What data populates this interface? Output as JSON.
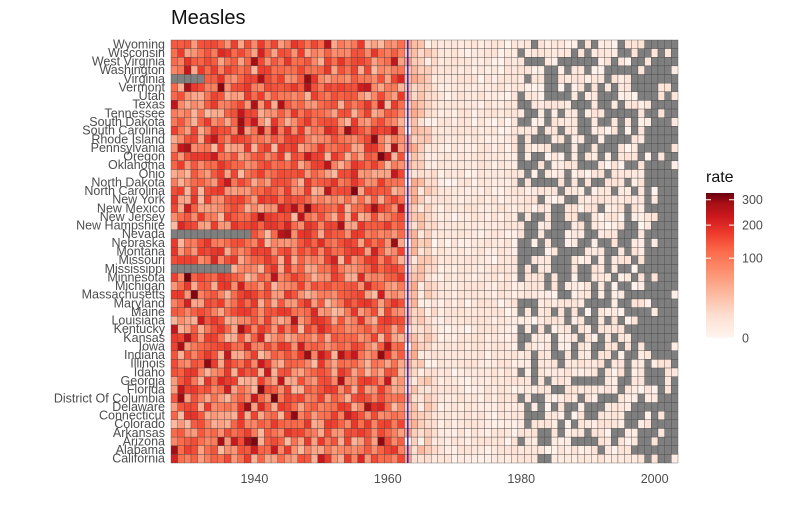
{
  "chart_data": {
    "type": "heatmap",
    "title": "Measles",
    "xlabel": "",
    "ylabel": "",
    "x_range": [
      1928,
      2003
    ],
    "x_ticks": [
      1940,
      1960,
      1980,
      2000
    ],
    "vaccine_line_year": 1963,
    "missing_color": "#7f7f7f",
    "grid_line_color": "#444444",
    "vaccine_line_color": "#0000cd",
    "legend": {
      "title": "rate",
      "position": "right",
      "ticks": [
        0,
        100,
        200,
        300
      ],
      "scale": "sqrt",
      "colors": [
        "#fff5f0",
        "#fee0d2",
        "#fcbba1",
        "#fc9272",
        "#fb6a4a",
        "#ef3b2c",
        "#cb181d",
        "#a50f15",
        "#67000d"
      ]
    },
    "states": [
      "Wyoming",
      "Wisconsin",
      "West Virginia",
      "Washington",
      "Virginia",
      "Vermont",
      "Utah",
      "Texas",
      "Tennessee",
      "South Dakota",
      "South Carolina",
      "Rhode Island",
      "Pennsylvania",
      "Oregon",
      "Oklahoma",
      "Ohio",
      "North Dakota",
      "North Carolina",
      "New York",
      "New Mexico",
      "New Jersey",
      "New Hampshire",
      "Nevada",
      "Nebraska",
      "Montana",
      "Missouri",
      "Mississippi",
      "Minnesota",
      "Michigan",
      "Massachusetts",
      "Maryland",
      "Maine",
      "Louisiana",
      "Kentucky",
      "Kansas",
      "Iowa",
      "Indiana",
      "Illinois",
      "Idaho",
      "Georgia",
      "Florida",
      "District Of Columbia",
      "Delaware",
      "Connecticut",
      "Colorado",
      "Arkansas",
      "Arizona",
      "Alabama",
      "California"
    ],
    "value_pattern": {
      "note": "Rates are highest before 1963 (roughly 30-300 per 100,000), drop sharply after the 1963 vaccine line, and are near 0 after 1970; grey cells are missing data, mostly after 1980.",
      "pre_1963_range": [
        10,
        320
      ],
      "post_1970_range": [
        0,
        5
      ]
    }
  }
}
